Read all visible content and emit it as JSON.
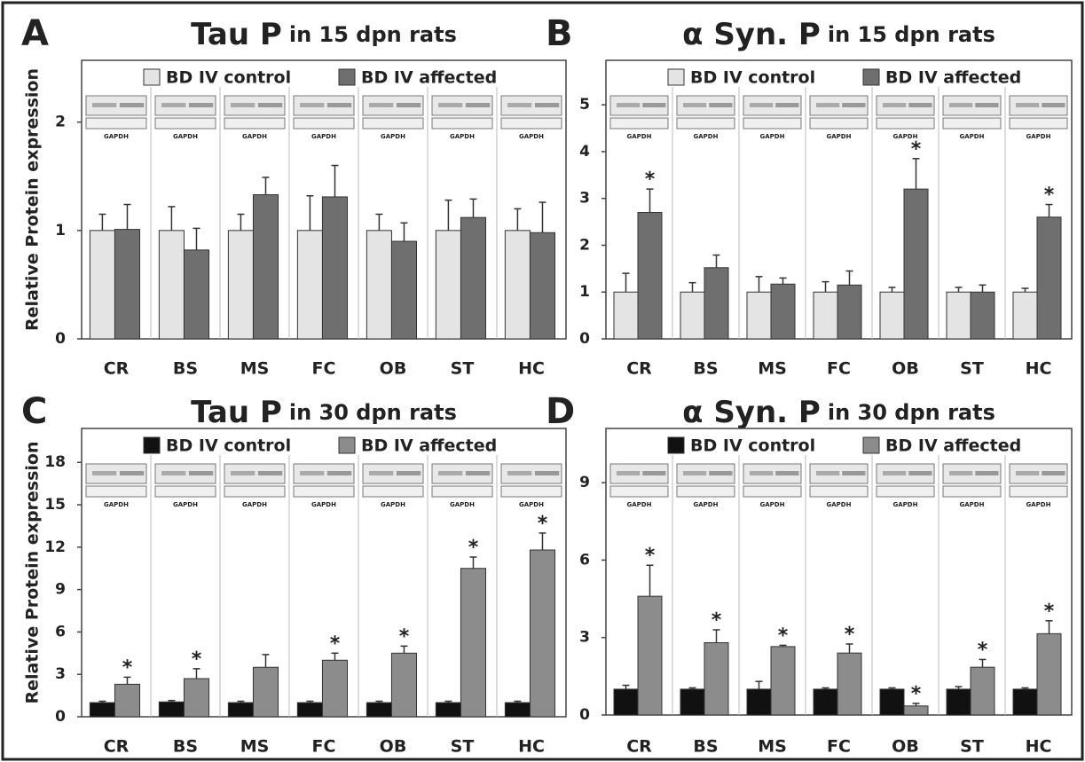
{
  "chart_data": [
    {
      "type": "bar",
      "panel_label": "A",
      "title": "Tau P",
      "subtitle": "in 15 dpn rats",
      "ylabel": "Relative Protein expression",
      "categories": [
        "CR",
        "BS",
        "MS",
        "FC",
        "OB",
        "ST",
        "HC"
      ],
      "blot_label": "GAPDH",
      "ylim": [
        0,
        2.57
      ],
      "yticks": [
        0,
        1,
        2
      ],
      "series": [
        {
          "name": "BD IV control",
          "color": "#e4e4e4",
          "values": [
            1,
            1,
            1,
            1,
            1,
            1,
            1
          ],
          "errors": [
            0.15,
            0.22,
            0.15,
            0.32,
            0.15,
            0.28,
            0.2
          ]
        },
        {
          "name": "BD IV affected",
          "color": "#6f6f6f",
          "values": [
            1.01,
            0.82,
            1.33,
            1.31,
            0.9,
            1.12,
            0.98
          ],
          "errors": [
            0.23,
            0.2,
            0.16,
            0.29,
            0.17,
            0.17,
            0.28
          ],
          "markers": [
            null,
            null,
            null,
            null,
            null,
            null,
            null
          ]
        }
      ]
    },
    {
      "type": "bar",
      "panel_label": "B",
      "title": "α Syn. P",
      "subtitle": "in 15 dpn rats",
      "categories": [
        "CR",
        "BS",
        "MS",
        "FC",
        "OB",
        "ST",
        "HC"
      ],
      "blot_label": "GAPDH",
      "ylim": [
        0,
        5.95
      ],
      "yticks": [
        0,
        1,
        2,
        3,
        4,
        5
      ],
      "series": [
        {
          "name": "BD IV control",
          "color": "#e4e4e4",
          "values": [
            1,
            1,
            1,
            1,
            1,
            1,
            1
          ],
          "errors": [
            0.4,
            0.2,
            0.33,
            0.22,
            0.1,
            0.1,
            0.08
          ]
        },
        {
          "name": "BD IV affected",
          "color": "#6f6f6f",
          "values": [
            2.7,
            1.52,
            1.17,
            1.15,
            3.2,
            1.0,
            2.6
          ],
          "errors": [
            0.5,
            0.27,
            0.13,
            0.3,
            0.65,
            0.15,
            0.27
          ],
          "markers": [
            "*",
            null,
            null,
            null,
            "*",
            null,
            "*"
          ]
        }
      ]
    },
    {
      "type": "bar",
      "panel_label": "C",
      "title": "Tau P",
      "subtitle": "in 30 dpn rats",
      "ylabel": "Relative Protein expression",
      "categories": [
        "CR",
        "BS",
        "MS",
        "FC",
        "OB",
        "ST",
        "HC"
      ],
      "blot_label": "GAPDH",
      "ylim": [
        0,
        20.4
      ],
      "yticks": [
        0,
        3,
        6,
        9,
        12,
        15,
        18
      ],
      "series": [
        {
          "name": "BD IV control",
          "color": "#111111",
          "values": [
            1,
            1.05,
            1,
            1,
            1,
            1,
            1
          ],
          "errors": [
            0.1,
            0.1,
            0.1,
            0.1,
            0.1,
            0.1,
            0.1
          ]
        },
        {
          "name": "BD IV affected",
          "color": "#8c8c8c",
          "values": [
            2.3,
            2.7,
            3.5,
            4.0,
            4.5,
            10.5,
            11.8
          ],
          "errors": [
            0.5,
            0.7,
            0.9,
            0.5,
            0.5,
            0.8,
            1.2
          ],
          "markers": [
            "*",
            "*",
            null,
            "*",
            "*",
            "*",
            "*"
          ]
        }
      ]
    },
    {
      "type": "bar",
      "panel_label": "D",
      "title": "α Syn. P",
      "subtitle": "in 30 dpn rats",
      "categories": [
        "CR",
        "BS",
        "MS",
        "FC",
        "OB",
        "ST",
        "HC"
      ],
      "blot_label": "GAPDH",
      "ylim": [
        0,
        11.1
      ],
      "yticks": [
        0,
        3,
        6,
        9
      ],
      "series": [
        {
          "name": "BD IV control",
          "color": "#111111",
          "values": [
            1,
            1,
            1,
            1,
            1,
            1,
            1
          ],
          "errors": [
            0.15,
            0.05,
            0.3,
            0.05,
            0.05,
            0.1,
            0.05
          ]
        },
        {
          "name": "BD IV affected",
          "color": "#8c8c8c",
          "values": [
            4.6,
            2.8,
            2.65,
            2.4,
            0.35,
            1.85,
            3.15
          ],
          "errors": [
            1.2,
            0.5,
            0.05,
            0.35,
            0.1,
            0.3,
            0.5
          ],
          "markers": [
            "*",
            "*",
            "*",
            "*",
            "*",
            "*",
            "*"
          ]
        }
      ]
    }
  ]
}
